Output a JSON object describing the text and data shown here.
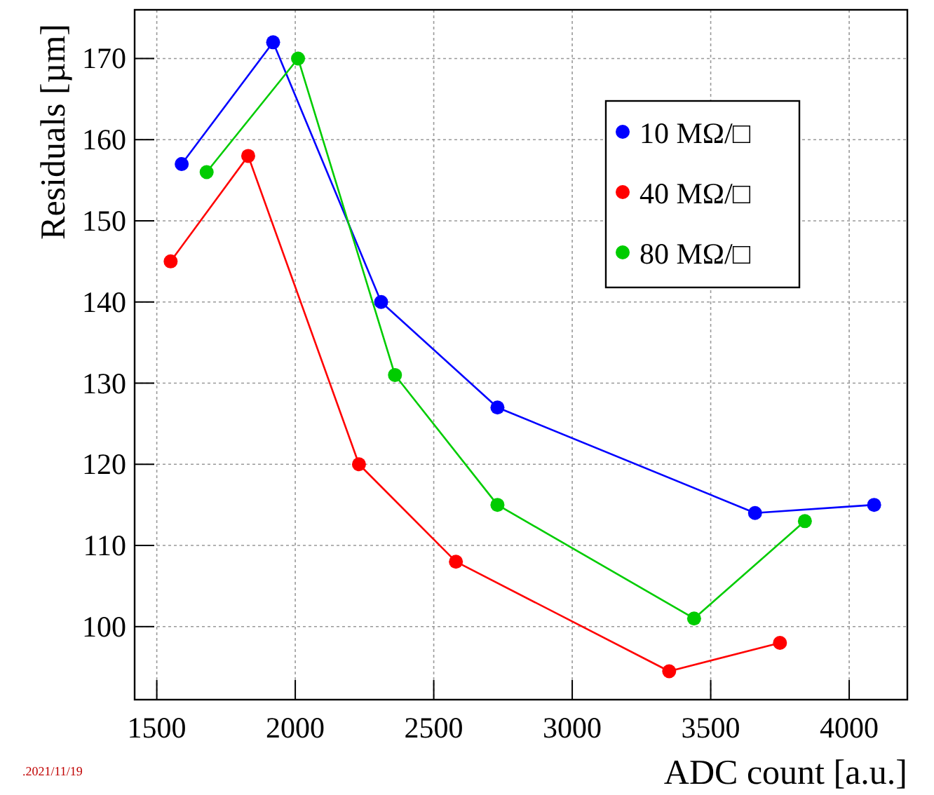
{
  "chart_data": {
    "type": "line",
    "xlabel": "ADC count [a.u.]",
    "ylabel": "Residuals [µm]",
    "xlim": [
      1420,
      4210
    ],
    "xticks": [
      1500,
      2000,
      2500,
      3000,
      3500,
      4000
    ],
    "ylim": [
      91,
      176
    ],
    "yticks": [
      100,
      110,
      120,
      130,
      140,
      150,
      160,
      170
    ],
    "grid": true,
    "legend": "top right",
    "marker": "circle",
    "annotations": [
      ".2021/11/19"
    ],
    "series": [
      {
        "name": "10 MΩ/□",
        "color": "#0000ff",
        "x": [
          1590,
          1920,
          2310,
          2730,
          3660,
          4090
        ],
        "values": [
          157,
          172,
          140,
          127,
          114,
          115
        ]
      },
      {
        "name": "40 MΩ/□",
        "color": "#ff0000",
        "x": [
          1550,
          1830,
          2230,
          2580,
          3350,
          3750
        ],
        "values": [
          145,
          158,
          120,
          108,
          94.5,
          98
        ]
      },
      {
        "name": "80 MΩ/□",
        "color": "#00cc00",
        "x": [
          1680,
          2010,
          2360,
          2730,
          3440,
          3840
        ],
        "values": [
          156,
          170,
          131,
          115,
          101,
          113
        ]
      }
    ]
  }
}
